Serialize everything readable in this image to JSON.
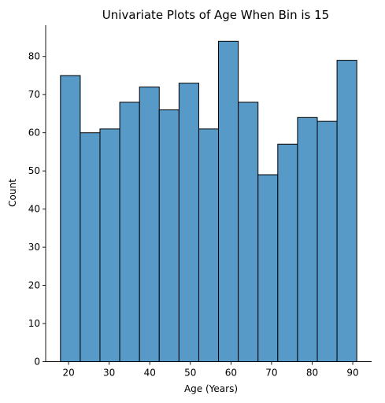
{
  "chart_data": {
    "type": "bar",
    "subtype": "histogram",
    "title": "Univariate Plots of Age When Bin is 15",
    "xlabel": "Age (Years)",
    "ylabel": "Count",
    "bins": 15,
    "bin_edges": [
      18,
      22.87,
      27.73,
      32.6,
      37.47,
      42.33,
      47.2,
      52.07,
      56.93,
      61.8,
      66.67,
      71.53,
      76.4,
      81.27,
      86.13,
      91
    ],
    "values": [
      75,
      60,
      61,
      68,
      72,
      66,
      73,
      61,
      84,
      68,
      49,
      57,
      64,
      63,
      79
    ],
    "xlim": [
      14.35,
      94.65
    ],
    "ylim": [
      0,
      88.2
    ],
    "xticks": [
      20,
      30,
      40,
      50,
      60,
      70,
      80,
      90
    ],
    "yticks": [
      0,
      10,
      20,
      30,
      40,
      50,
      60,
      70,
      80
    ],
    "bar_color": "#5799c7",
    "edge_color": "#000000",
    "grid": false,
    "spines": "left-bottom"
  }
}
